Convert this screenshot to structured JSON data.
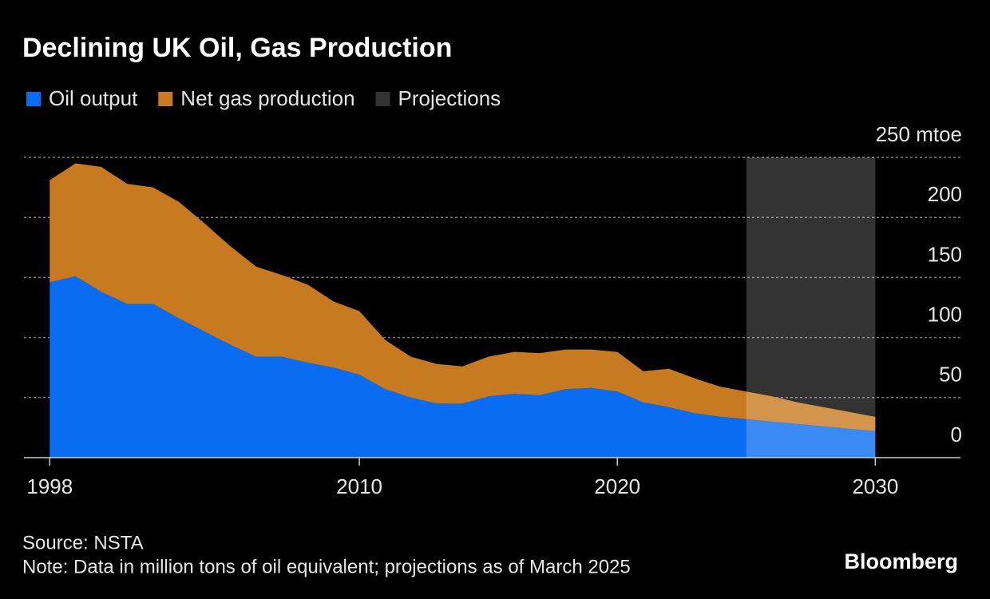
{
  "chart_data": {
    "type": "stacked-area",
    "title": "Declining UK Oil, Gas Production",
    "x": [
      1998,
      1999,
      2000,
      2001,
      2002,
      2003,
      2004,
      2005,
      2006,
      2007,
      2008,
      2009,
      2010,
      2011,
      2012,
      2013,
      2014,
      2015,
      2016,
      2017,
      2018,
      2019,
      2020,
      2021,
      2022,
      2023,
      2024,
      2025,
      2026,
      2027,
      2028,
      2029,
      2030
    ],
    "series": [
      {
        "name": "Oil output",
        "color": "#0a6cf0",
        "values": [
          146,
          151,
          138,
          128,
          128,
          116,
          105,
          94,
          84,
          84,
          79,
          75,
          69,
          57,
          50,
          45,
          45,
          51,
          53,
          52,
          57,
          58,
          55,
          46,
          42,
          37,
          34,
          32,
          30,
          28,
          26,
          24,
          22
        ]
      },
      {
        "name": "Net gas production",
        "color": "#c87a20",
        "values": [
          85,
          94,
          104,
          100,
          97,
          97,
          90,
          82,
          75,
          68,
          65,
          55,
          53,
          41,
          34,
          33,
          31,
          33,
          35,
          35,
          33,
          32,
          33,
          26,
          32,
          29,
          25,
          23,
          21,
          18,
          16,
          14,
          12
        ]
      }
    ],
    "projections": {
      "name": "Projections",
      "color": "#333333",
      "range": [
        2025,
        2030
      ]
    },
    "xlim": [
      1997,
      2033.3
    ],
    "xticks": [
      1998,
      2010,
      2020,
      2030
    ],
    "ylim": [
      0,
      250
    ],
    "yticks": [
      0,
      50,
      100,
      150,
      200,
      {
        "value": 250,
        "label": "250 mtoe"
      }
    ],
    "grid": true,
    "source": "Source: NSTA",
    "note": "Note: Data in million tons of oil equivalent; projections as of March 2025",
    "brand": "Bloomberg"
  }
}
